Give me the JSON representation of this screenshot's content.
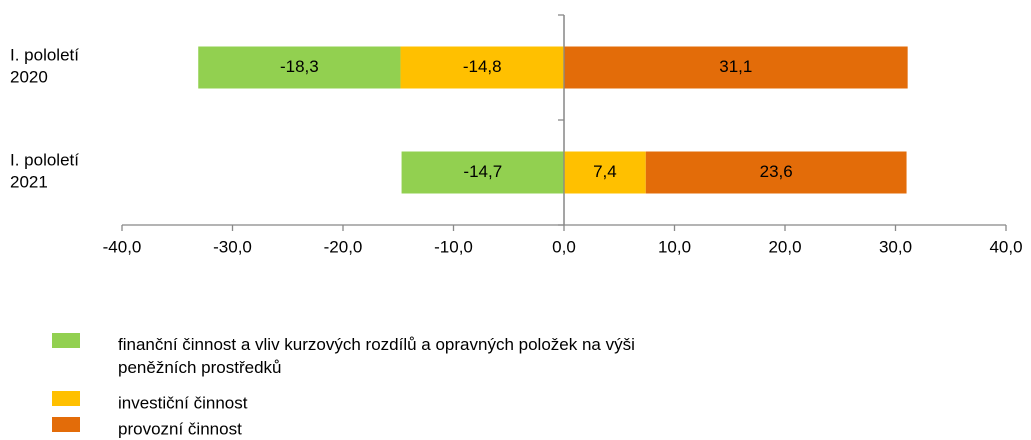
{
  "chart_data": {
    "type": "bar",
    "orientation": "horizontal",
    "stacked": true,
    "categories": [
      "I. pololetí\n2020",
      "I. pololetí\n2021"
    ],
    "series": [
      {
        "name": "finanční činnost a vliv kurzových rozdílů a opravných položek na výši\npeněžních prostředků",
        "color": "#92d050",
        "values": [
          -18.3,
          -14.7
        ],
        "value_labels": [
          "-18,3",
          "-14,7"
        ]
      },
      {
        "name": "investiční činnost",
        "color": "#ffc000",
        "values": [
          -14.8,
          7.4
        ],
        "value_labels": [
          "-14,8",
          "7,4"
        ]
      },
      {
        "name": "provozní činnost",
        "color": "#e36c09",
        "values": [
          31.1,
          23.6
        ],
        "value_labels": [
          "31,1",
          "23,6"
        ]
      }
    ],
    "xlim": [
      -40,
      40
    ],
    "xticks": [
      {
        "value": -40,
        "label": "-40,0"
      },
      {
        "value": -30,
        "label": "-30,0"
      },
      {
        "value": -20,
        "label": "-20,0"
      },
      {
        "value": -10,
        "label": "-10,0"
      },
      {
        "value": 0,
        "label": "0,0"
      },
      {
        "value": 10,
        "label": "10,0"
      },
      {
        "value": 20,
        "label": "20,0"
      },
      {
        "value": 30,
        "label": "30,0"
      },
      {
        "value": 40,
        "label": "40,0"
      }
    ],
    "legend": "bottom"
  }
}
